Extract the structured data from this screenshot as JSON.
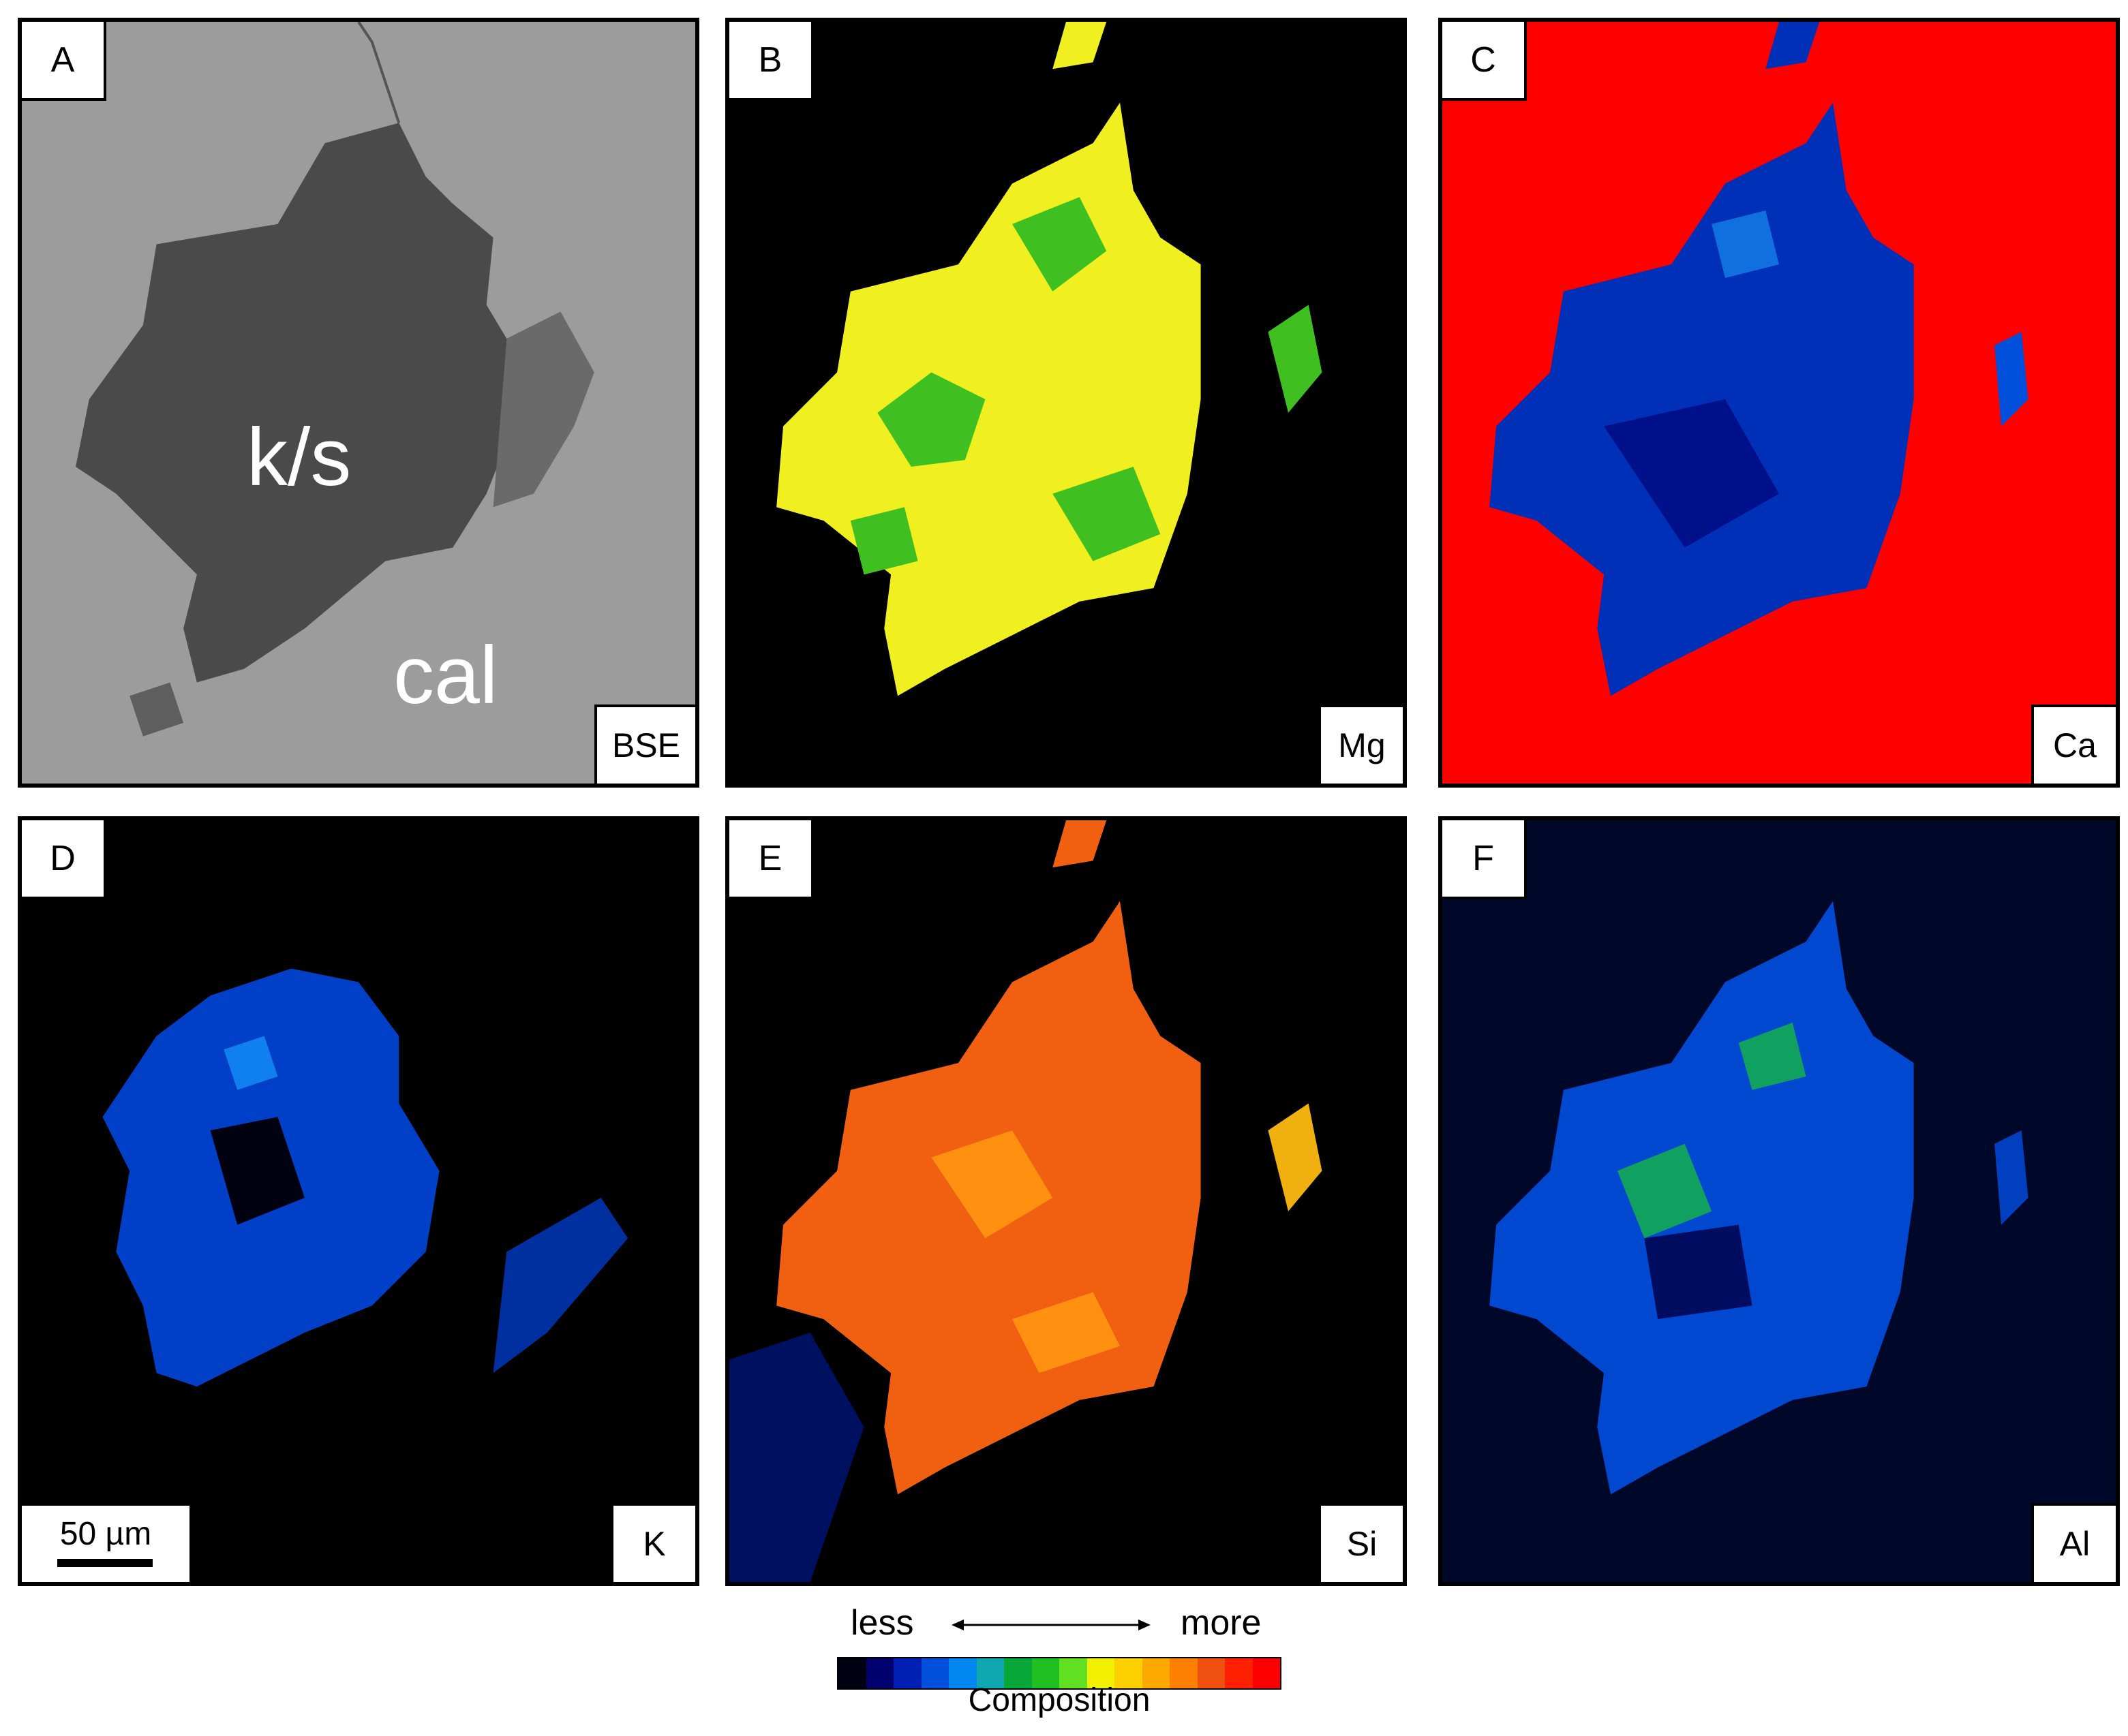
{
  "panels": [
    {
      "letter": "A",
      "element": "BSE"
    },
    {
      "letter": "B",
      "element": "Mg"
    },
    {
      "letter": "C",
      "element": "Ca"
    },
    {
      "letter": "D",
      "element": "K"
    },
    {
      "letter": "E",
      "element": "Si"
    },
    {
      "letter": "F",
      "element": "Al"
    }
  ],
  "annotations": {
    "ks": "k/s",
    "cal": "cal"
  },
  "scale_bar": "50 µm",
  "legend": {
    "less": "less",
    "more": "more",
    "title": "Composition",
    "colors": [
      "#000012",
      "#00006e",
      "#0020b4",
      "#0050dc",
      "#0088f0",
      "#10a8b0",
      "#08a838",
      "#20c020",
      "#60e020",
      "#f0f000",
      "#ffd000",
      "#ffa800",
      "#ff8000",
      "#f05010",
      "#ff2000",
      "#ff0000"
    ]
  },
  "colors": {
    "ca_matrix": "#ff0000",
    "mg_high": "#f0f020",
    "mg_mid": "#40c020",
    "blue_low": "#0030b8",
    "si_high": "#f06010",
    "bse_matrix": "#9a9a9a",
    "bse_grain": "#4a4a4a"
  }
}
